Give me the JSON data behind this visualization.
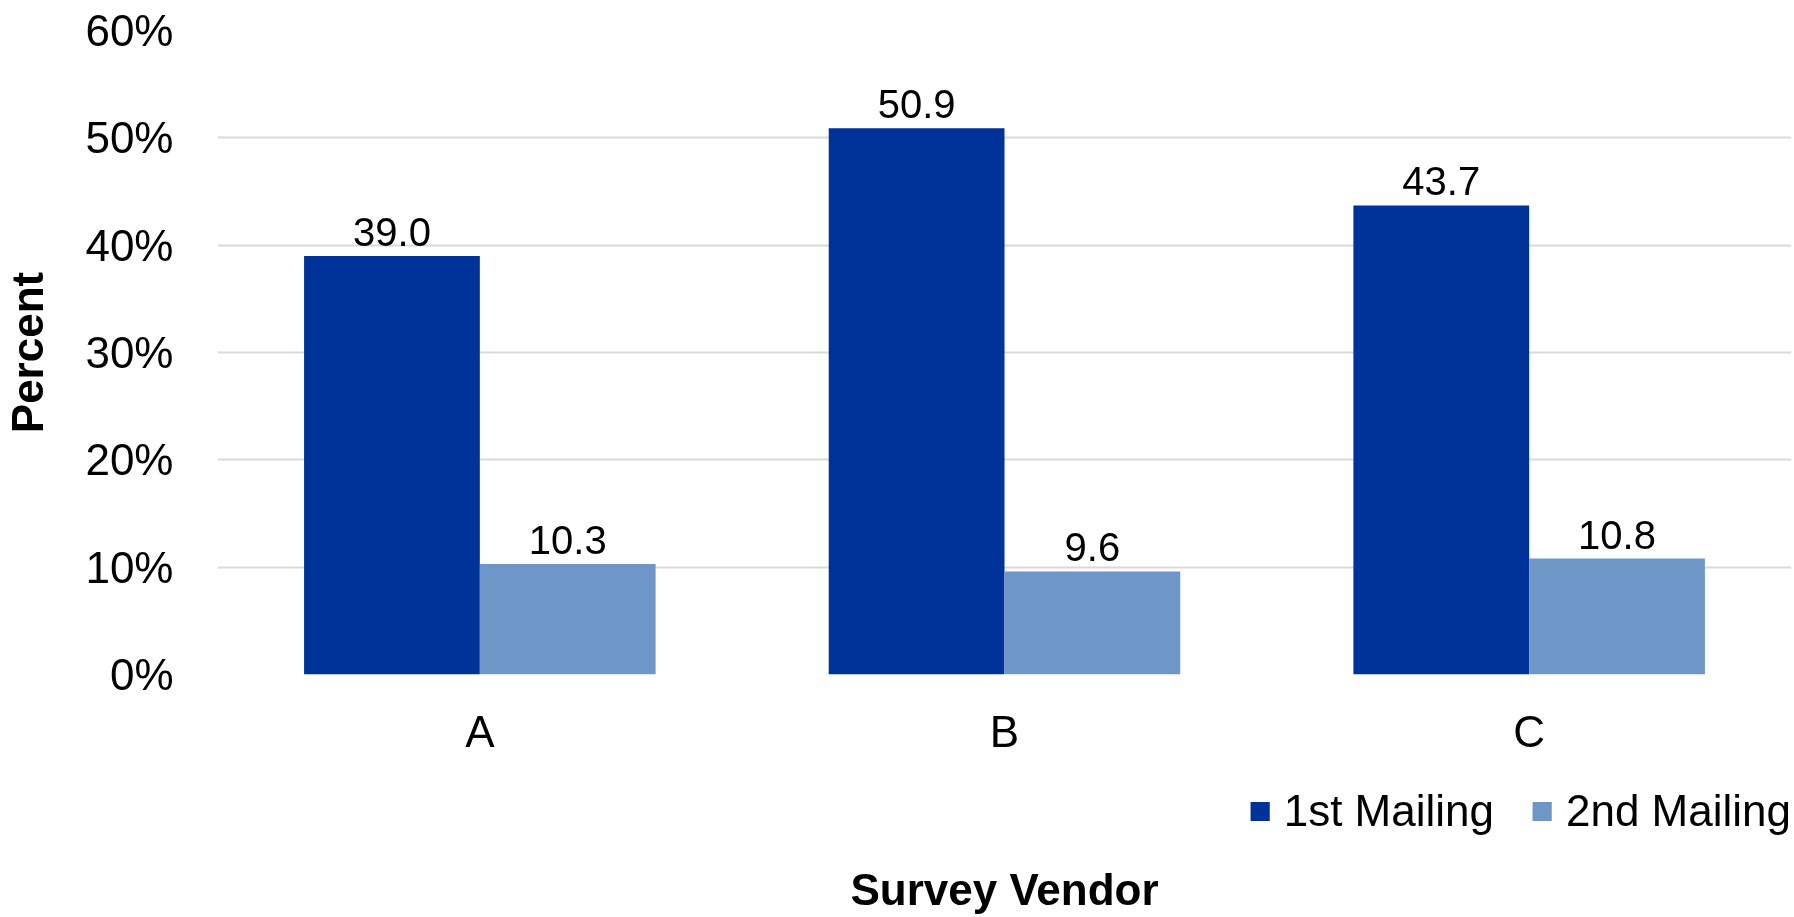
{
  "chart_data": {
    "type": "bar",
    "xlabel": "Survey Vendor",
    "ylabel": "Percent",
    "categories": [
      "A",
      "B",
      "C"
    ],
    "series": [
      {
        "name": "1st Mailing",
        "color": "#003399",
        "values": [
          39.0,
          50.9,
          43.7
        ],
        "value_labels": [
          "39.0",
          "50.9",
          "43.7"
        ]
      },
      {
        "name": "2nd Mailing",
        "color": "#6e97c8",
        "values": [
          10.3,
          9.6,
          10.8
        ],
        "value_labels": [
          "10.3",
          "9.6",
          "10.8"
        ]
      }
    ],
    "ylim": [
      0,
      60
    ],
    "yticks": [
      {
        "value": 0,
        "label": "0%"
      },
      {
        "value": 10,
        "label": "10%"
      },
      {
        "value": 20,
        "label": "20%"
      },
      {
        "value": 30,
        "label": "30%"
      },
      {
        "value": 40,
        "label": "40%"
      },
      {
        "value": 50,
        "label": "50%"
      },
      {
        "value": 60,
        "label": "60%"
      }
    ],
    "grid": "y",
    "legend": "bottom right"
  }
}
